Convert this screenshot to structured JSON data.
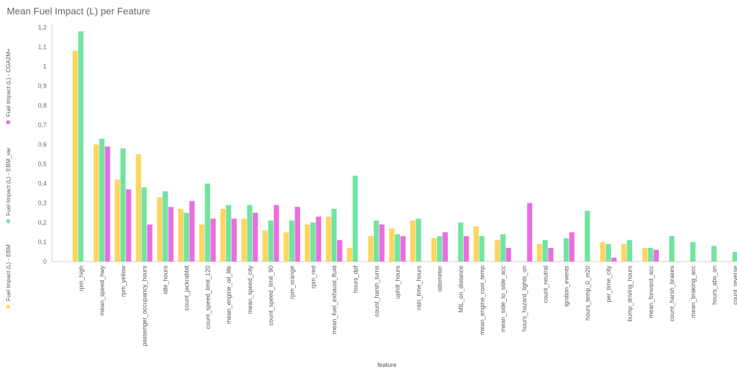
{
  "colors": {
    "EBM": "#fcd660",
    "EBM_var": "#72e4a0",
    "CGA2M+": "#e96ee0",
    "axis": "#cccccc"
  },
  "chart_data": {
    "type": "bar",
    "title": "Mean Fuel Impact (L) per Feature",
    "xlabel": "feature",
    "ylabel": "",
    "ylim": [
      0,
      1.2
    ],
    "y_ticks": [
      "0",
      "0,1",
      "0,2",
      "0,3",
      "0,4",
      "0,5",
      "0,6",
      "0,7",
      "0,8",
      "0,9",
      "1",
      "1,1",
      "1,2"
    ],
    "legend_position": "left-vertical",
    "categories": [
      "rpm_high",
      "mean_speed_hwy",
      "rpm_yellow",
      "passenger_occupancy_hours",
      "idle_hours",
      "count_jackrabbit",
      "count_speed_limit_120",
      "mean_engine_oil_life",
      "mean_speed_city",
      "count_speed_limit_90",
      "rpm_orange",
      "rpm_red",
      "mean_fuel_exhaust_fluid",
      "hours_dpf",
      "count_harsh_turns",
      "uphill_hours",
      "rain_time_hours",
      "odometer",
      "MIL_on_distance",
      "mean_engine_cool_temp",
      "mean_side_to_side_acc",
      "hours_hazard_lights_on",
      "count_neutral",
      "ignition_events",
      "hours_temp_0_m20",
      "per_time_city",
      "bump_driving_hours",
      "mean_forward_acc",
      "count_harsh_brakes",
      "mean_braking_acc",
      "hours_abs_on",
      "count_reverse"
    ],
    "series": [
      {
        "name": "Fuel Impact (L) - EBM",
        "color_key": "EBM",
        "values": [
          1.08,
          0.6,
          0.42,
          0.55,
          0.33,
          0.27,
          0.19,
          0.27,
          0.22,
          0.16,
          0.15,
          0.19,
          0.23,
          0.07,
          0.13,
          0.17,
          0.21,
          0.12,
          0,
          0.18,
          0.11,
          0,
          0.09,
          0,
          0,
          0.1,
          0.09,
          0.07,
          0,
          0,
          0,
          0
        ]
      },
      {
        "name": "Fuel Impact (L) - EBM_var",
        "color_key": "EBM_var",
        "values": [
          1.18,
          0.63,
          0.58,
          0.38,
          0.36,
          0.25,
          0.4,
          0.29,
          0.29,
          0.21,
          0.21,
          0.2,
          0.27,
          0.44,
          0.21,
          0.14,
          0.22,
          0.13,
          0.2,
          0.13,
          0.14,
          0,
          0.11,
          0.12,
          0.26,
          0.09,
          0.11,
          0.07,
          0.13,
          0.1,
          0.08,
          0.05
        ]
      },
      {
        "name": "Fuel Impact (L) - CGA2M+",
        "color_key": "CGA2M+",
        "values": [
          0,
          0.59,
          0.37,
          0.19,
          0.28,
          0.31,
          0.22,
          0.22,
          0.25,
          0.29,
          0.28,
          0.23,
          0.11,
          0,
          0.19,
          0.13,
          0,
          0.15,
          0.13,
          0,
          0.07,
          0.3,
          0.07,
          0.15,
          0,
          0.02,
          0,
          0.06,
          0,
          0,
          0,
          0
        ]
      }
    ]
  }
}
